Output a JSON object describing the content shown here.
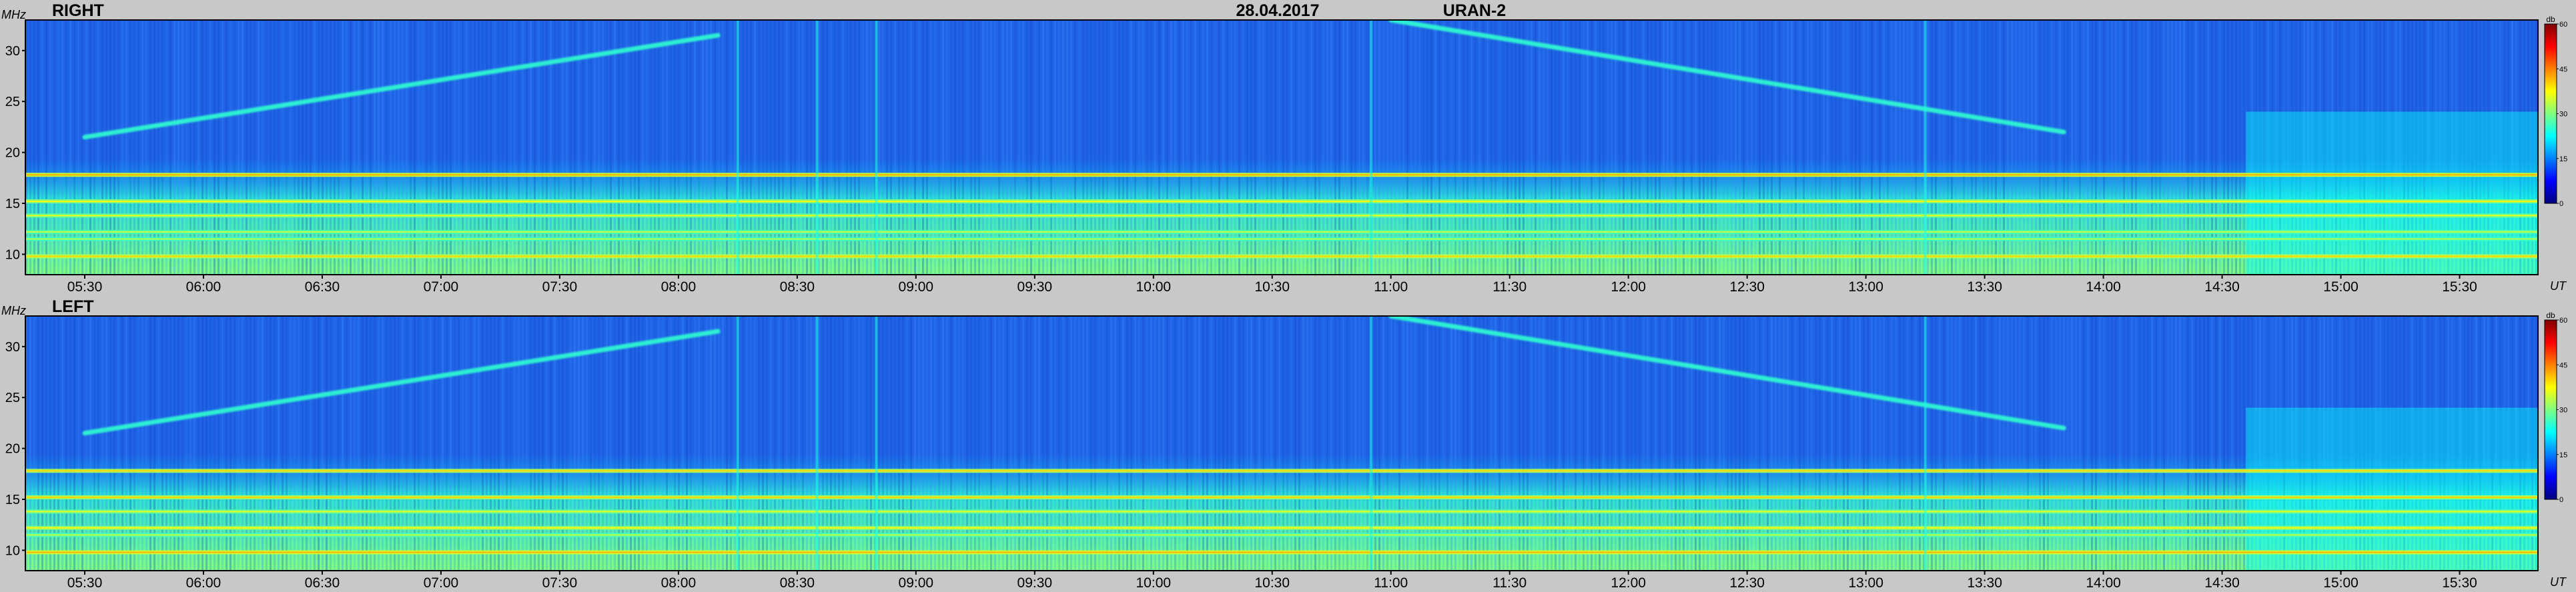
{
  "header": {
    "date": "28.04.2017",
    "instrument": "URAN-2"
  },
  "colors": {
    "background": "#c8c8c8",
    "plot_base": "#1f63e6",
    "colormap": [
      "#00007f",
      "#0000ff",
      "#0080ff",
      "#00ffff",
      "#80ff80",
      "#ffff00",
      "#ff8000",
      "#ff0000",
      "#7f0000"
    ]
  },
  "chart_data": [
    {
      "type": "heatmap",
      "panel_label": "RIGHT",
      "ylabel": "MHz",
      "xlabel": "UT",
      "colorbar_label": "db",
      "colorbar_ticks": [
        0,
        15,
        30,
        45,
        60
      ],
      "ylim": [
        8,
        33
      ],
      "yticks": [
        10,
        15,
        20,
        25,
        30
      ],
      "xlim_hours": [
        5.25,
        15.83
      ],
      "xticks": [
        "05:30",
        "06:00",
        "06:30",
        "07:00",
        "07:30",
        "08:00",
        "08:30",
        "09:00",
        "09:30",
        "10:00",
        "10:30",
        "11:00",
        "11:30",
        "12:00",
        "12:30",
        "13:00",
        "13:30",
        "14:00",
        "14:30",
        "15:00",
        "15:30"
      ],
      "horizontal_bands": [
        {
          "freq_mhz": 17.8,
          "level_db": 42
        },
        {
          "freq_mhz": 15.2,
          "level_db": 38
        },
        {
          "freq_mhz": 13.8,
          "level_db": 36
        },
        {
          "freq_mhz": 12.2,
          "level_db": 34
        },
        {
          "freq_mhz": 11.5,
          "level_db": 33
        },
        {
          "freq_mhz": 9.8,
          "level_db": 40
        }
      ],
      "drifting_tracks": [
        {
          "from": [
            "05:30",
            21.5
          ],
          "to": [
            "08:10",
            31.5
          ]
        },
        {
          "from": [
            "11:00",
            33
          ],
          "to": [
            "13:50",
            22
          ]
        }
      ],
      "vertical_bursts": [
        "08:15",
        "08:35",
        "08:50",
        "10:55",
        "13:15"
      ]
    },
    {
      "type": "heatmap",
      "panel_label": "LEFT",
      "ylabel": "MHz",
      "xlabel": "UT",
      "colorbar_label": "db",
      "colorbar_ticks": [
        0,
        15,
        30,
        45,
        60
      ],
      "ylim": [
        8,
        33
      ],
      "yticks": [
        10,
        15,
        20,
        25,
        30
      ],
      "xlim_hours": [
        5.25,
        15.83
      ],
      "xticks": [
        "05:30",
        "06:00",
        "06:30",
        "07:00",
        "07:30",
        "08:00",
        "08:30",
        "09:00",
        "09:30",
        "10:00",
        "10:30",
        "11:00",
        "11:30",
        "12:00",
        "12:30",
        "13:00",
        "13:30",
        "14:00",
        "14:30",
        "15:00",
        "15:30"
      ],
      "horizontal_bands": [
        {
          "freq_mhz": 17.8,
          "level_db": 40
        },
        {
          "freq_mhz": 15.2,
          "level_db": 40
        },
        {
          "freq_mhz": 13.8,
          "level_db": 36
        },
        {
          "freq_mhz": 12.2,
          "level_db": 38
        },
        {
          "freq_mhz": 11.5,
          "level_db": 34
        },
        {
          "freq_mhz": 9.8,
          "level_db": 42
        }
      ],
      "drifting_tracks": [
        {
          "from": [
            "05:30",
            21.5
          ],
          "to": [
            "08:10",
            31.5
          ]
        },
        {
          "from": [
            "11:00",
            33
          ],
          "to": [
            "13:50",
            22
          ]
        }
      ],
      "vertical_bursts": [
        "08:15",
        "08:35",
        "08:50",
        "10:55",
        "13:15"
      ]
    }
  ]
}
